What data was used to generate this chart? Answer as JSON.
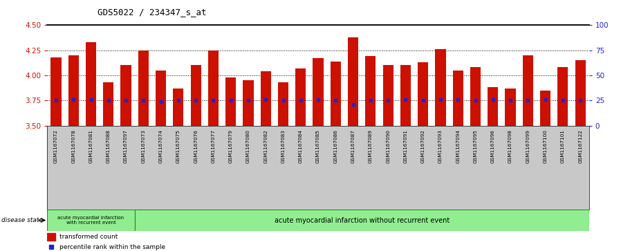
{
  "title": "GDS5022 / 234347_s_at",
  "samples": [
    "GSM1167072",
    "GSM1167078",
    "GSM1167081",
    "GSM1167088",
    "GSM1167097",
    "GSM1167073",
    "GSM1167074",
    "GSM1167075",
    "GSM1167076",
    "GSM1167077",
    "GSM1167079",
    "GSM1167080",
    "GSM1167082",
    "GSM1167083",
    "GSM1167084",
    "GSM1167085",
    "GSM1167086",
    "GSM1167087",
    "GSM1167089",
    "GSM1167090",
    "GSM1167091",
    "GSM1167092",
    "GSM1167093",
    "GSM1167094",
    "GSM1167095",
    "GSM1167096",
    "GSM1167098",
    "GSM1167099",
    "GSM1167100",
    "GSM1167101",
    "GSM1167122"
  ],
  "bar_values": [
    4.18,
    4.2,
    4.33,
    3.93,
    4.1,
    4.25,
    4.05,
    3.87,
    4.1,
    4.25,
    3.98,
    3.95,
    4.04,
    3.93,
    4.07,
    4.17,
    4.14,
    4.38,
    4.19,
    4.1,
    4.1,
    4.13,
    4.26,
    4.05,
    4.08,
    3.88,
    3.87,
    4.2,
    3.85,
    4.08,
    4.15
  ],
  "percentile_values": [
    25,
    26,
    26,
    25,
    25,
    25,
    24,
    25,
    25,
    25,
    25,
    25,
    26,
    25,
    25,
    26,
    25,
    21,
    25,
    25,
    26,
    25,
    26,
    26,
    25,
    26,
    25,
    25,
    26,
    25,
    25
  ],
  "ylim_left": [
    3.5,
    4.5
  ],
  "ylim_right": [
    0,
    100
  ],
  "yticks_left": [
    3.5,
    3.75,
    4.0,
    4.25,
    4.5
  ],
  "yticks_right": [
    0,
    25,
    50,
    75,
    100
  ],
  "bar_color": "#CC1100",
  "percentile_color": "#2222CC",
  "plot_bg_color": "#FFFFFF",
  "xtick_bg_color": "#C8C8C8",
  "group1_label": "acute myocardial infarction\nwith recurrent event",
  "group2_label": "acute myocardial infarction without recurrent event",
  "group1_count": 5,
  "disease_state_label": "disease state",
  "legend_bar_label": "transformed count",
  "legend_dot_label": "percentile rank within the sample",
  "grid_dotted_color": "#000000",
  "axis_left_color": "#CC1100",
  "axis_right_color": "#2222CC",
  "green_fill": "#90EE90",
  "green_edge": "#228B22"
}
